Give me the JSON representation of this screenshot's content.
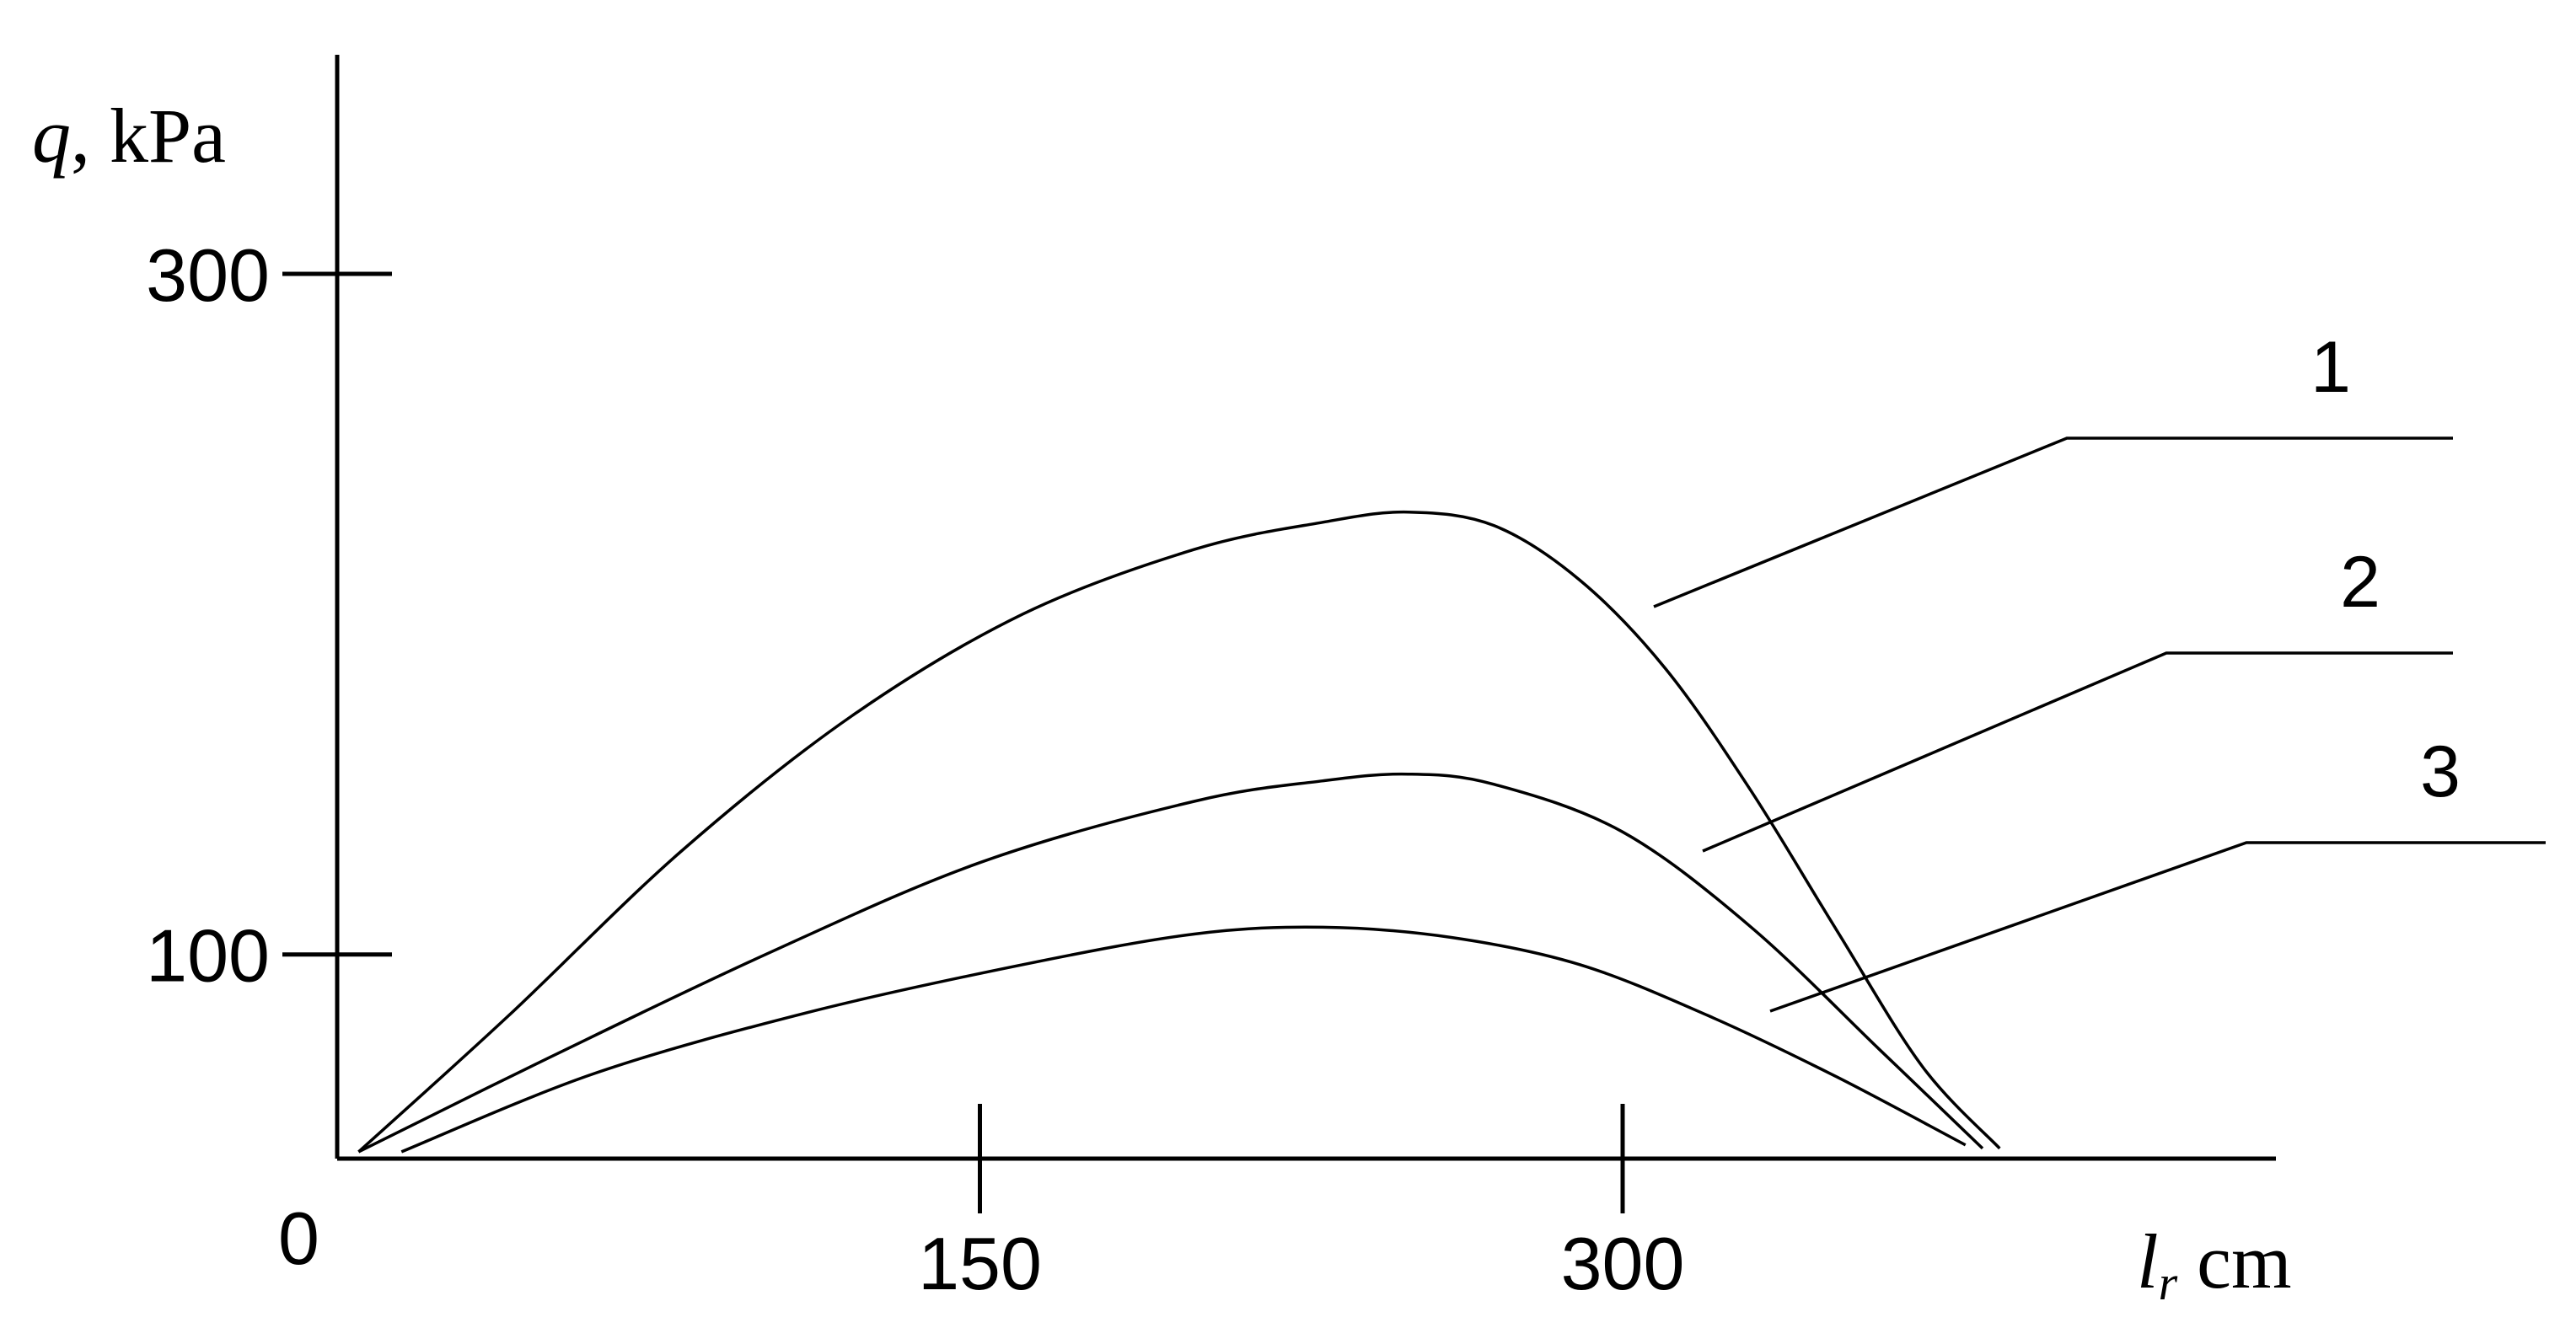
{
  "chart_data": {
    "type": "line",
    "title": "",
    "xlabel_symbol": "l",
    "xlabel_subscript": "r",
    "xlabel_unit": " cm",
    "ylabel_symbol": "q",
    "ylabel_unit": ", kPa",
    "origin_label": "0",
    "xlim": [
      0,
      380
    ],
    "ylim": [
      40,
      340
    ],
    "x_ticks": [
      {
        "value": 150,
        "label": "150"
      },
      {
        "value": 300,
        "label": "300"
      }
    ],
    "y_ticks": [
      {
        "value": 100,
        "label": "100"
      },
      {
        "value": 300,
        "label": "300"
      }
    ],
    "grid": false,
    "legend": "curve labels with leader lines, right side",
    "series": [
      {
        "name": "1",
        "x": [
          5,
          40,
          80,
          120,
          160,
          200,
          230,
          250,
          270,
          290,
          310,
          330,
          350,
          370,
          388
        ],
        "y": [
          42,
          82,
          130,
          170,
          200,
          219,
          227,
          230,
          226,
          210,
          184,
          148,
          107,
          67,
          43
        ]
      },
      {
        "name": "2",
        "x": [
          5,
          50,
          100,
          150,
          200,
          230,
          250,
          270,
          300,
          330,
          360,
          384
        ],
        "y": [
          42,
          70,
          100,
          127,
          145,
          151,
          153,
          150,
          136,
          108,
          72,
          43
        ]
      },
      {
        "name": "3",
        "x": [
          15,
          60,
          110,
          160,
          200,
          230,
          260,
          290,
          320,
          350,
          380
        ],
        "y": [
          42,
          65,
          83,
          97,
          106,
          108,
          105,
          97,
          82,
          64,
          44
        ]
      }
    ]
  }
}
